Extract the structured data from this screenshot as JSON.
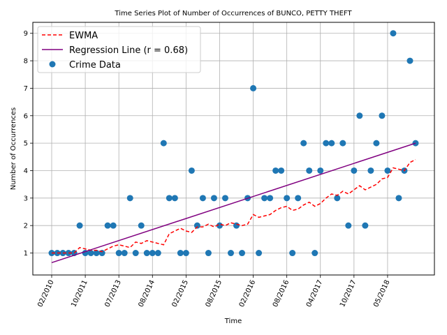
{
  "chart_data": {
    "type": "scatter",
    "title": "Time Series Plot of Number of Occurrences of BUNCO, PETTY THEFT",
    "xlabel": "Time",
    "ylabel": "Number of Occurrences",
    "x_tick_labels": [
      "02/2010",
      "10/2011",
      "07/2013",
      "08/2014",
      "02/2015",
      "08/2015",
      "02/2016",
      "08/2016",
      "04/2017",
      "10/2017",
      "05/2018"
    ],
    "y_ticks": [
      1,
      2,
      3,
      4,
      5,
      6,
      7,
      8,
      9
    ],
    "ylim": [
      0.2,
      9.4
    ],
    "grid": true,
    "legend_position": "upper-left",
    "series": [
      {
        "name": "EWMA",
        "style": "dashed",
        "color": "#ff0000",
        "values": [
          1.0,
          1.0,
          1.0,
          1.0,
          1.0,
          1.2,
          1.15,
          1.1,
          1.1,
          1.05,
          1.15,
          1.25,
          1.3,
          1.25,
          1.2,
          1.4,
          1.35,
          1.45,
          1.4,
          1.35,
          1.3,
          1.7,
          1.8,
          1.9,
          1.8,
          1.75,
          1.95,
          1.95,
          2.05,
          1.95,
          2.05,
          2.0,
          2.1,
          2.05,
          2.0,
          2.05,
          2.4,
          2.3,
          2.35,
          2.4,
          2.55,
          2.65,
          2.7,
          2.55,
          2.6,
          2.75,
          2.85,
          2.7,
          2.8,
          3.0,
          3.15,
          3.1,
          3.25,
          3.15,
          3.3,
          3.45,
          3.3,
          3.4,
          3.5,
          3.7,
          3.75,
          4.1,
          4.05,
          4.0,
          4.3,
          4.4
        ]
      },
      {
        "name": "Regression Line (r = 0.68)",
        "style": "solid",
        "color": "#800080",
        "start": 0.65,
        "end": 5.0
      },
      {
        "name": "Crime Data",
        "style": "markers",
        "color": "#1f77b4",
        "values": [
          1,
          1,
          1,
          1,
          1,
          2,
          1,
          1,
          1,
          1,
          2,
          2,
          1,
          1,
          3,
          1,
          2,
          1,
          1,
          1,
          5,
          3,
          3,
          1,
          1,
          4,
          2,
          3,
          1,
          3,
          2,
          3,
          1,
          2,
          1,
          3,
          7,
          1,
          3,
          3,
          4,
          4,
          3,
          1,
          3,
          5,
          4,
          1,
          4,
          5,
          5,
          3,
          5,
          2,
          4,
          6,
          2,
          4,
          5,
          6,
          4,
          9,
          3,
          4,
          8,
          5
        ]
      }
    ]
  }
}
